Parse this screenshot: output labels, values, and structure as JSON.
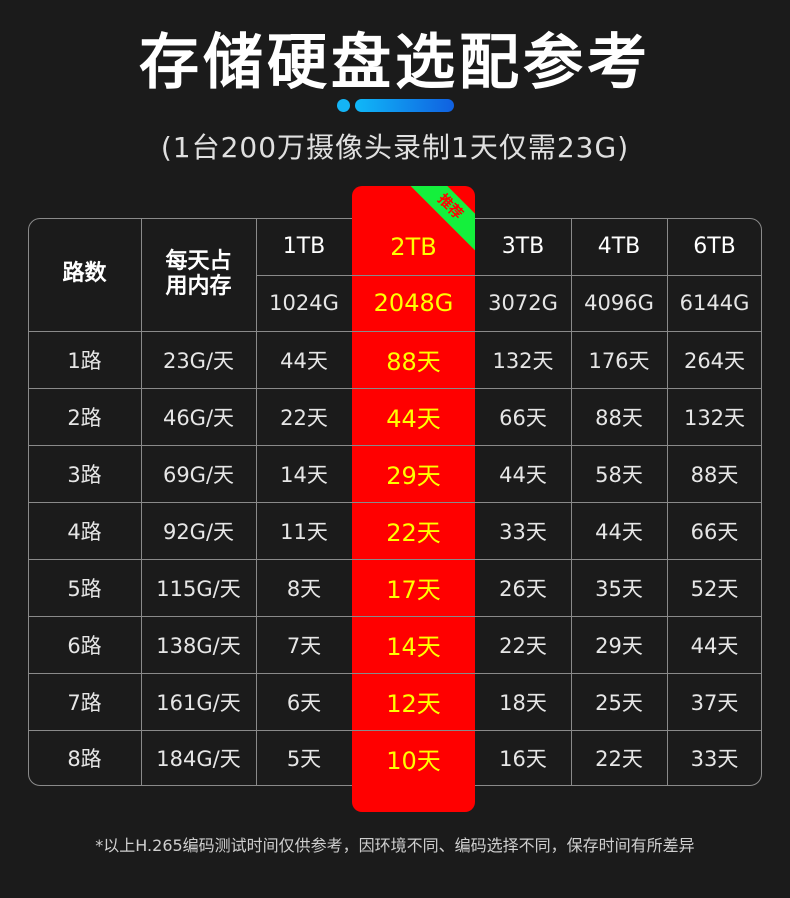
{
  "title": "存储硬盘选配参考",
  "subtitle": "(1台200万摄像头录制1天仅需23G)",
  "badge": "推荐",
  "colors": {
    "highlight": "#ff0000",
    "highlight_text": "#ffff00",
    "badge": "#14f03c",
    "accent": "#14b4f5"
  },
  "table": {
    "header": {
      "channels": "路数",
      "daily": "每天占用内存"
    },
    "capacities": [
      {
        "tb": "1TB",
        "gb": "1024G"
      },
      {
        "tb": "2TB",
        "gb": "2048G"
      },
      {
        "tb": "3TB",
        "gb": "3072G"
      },
      {
        "tb": "4TB",
        "gb": "4096G"
      },
      {
        "tb": "6TB",
        "gb": "6144G"
      }
    ],
    "rows": [
      {
        "ch": "1路",
        "daily": "23G/天",
        "days": [
          "44天",
          "88天",
          "132天",
          "176天",
          "264天"
        ]
      },
      {
        "ch": "2路",
        "daily": "46G/天",
        "days": [
          "22天",
          "44天",
          "66天",
          "88天",
          "132天"
        ]
      },
      {
        "ch": "3路",
        "daily": "69G/天",
        "days": [
          "14天",
          "29天",
          "44天",
          "58天",
          "88天"
        ]
      },
      {
        "ch": "4路",
        "daily": "92G/天",
        "days": [
          "11天",
          "22天",
          "33天",
          "44天",
          "66天"
        ]
      },
      {
        "ch": "5路",
        "daily": "115G/天",
        "days": [
          "8天",
          "17天",
          "26天",
          "35天",
          "52天"
        ]
      },
      {
        "ch": "6路",
        "daily": "138G/天",
        "days": [
          "7天",
          "14天",
          "22天",
          "29天",
          "44天"
        ]
      },
      {
        "ch": "7路",
        "daily": "161G/天",
        "days": [
          "6天",
          "12天",
          "18天",
          "25天",
          "37天"
        ]
      },
      {
        "ch": "8路",
        "daily": "184G/天",
        "days": [
          "5天",
          "10天",
          "16天",
          "22天",
          "33天"
        ]
      }
    ]
  },
  "note": "*以上H.265编码测试时间仅供参考，因环境不同、编码选择不同，保存时间有所差异"
}
